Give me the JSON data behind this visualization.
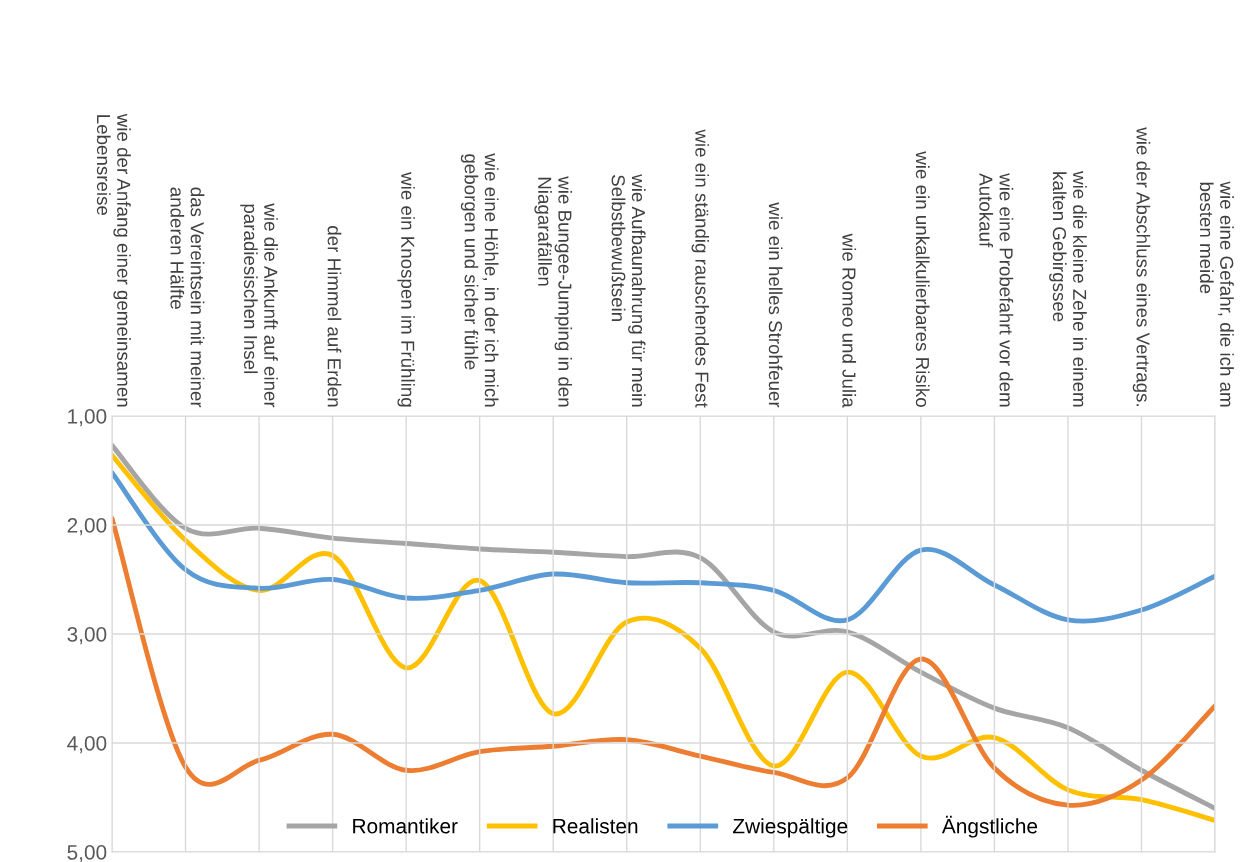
{
  "chart_data": {
    "type": "line",
    "categories": [
      "wie der Anfang einer gemeinsamen Lebensreise",
      "das Vereintsein mit meiner anderen Hälfte",
      "wie die Ankunft auf einer paradiesischen Insel",
      "der Himmel auf Erden",
      "wie ein Knospen im Frühling",
      "wie eine Höhle, in der ich mich geborgen und sicher fühle",
      "wie Bungee-Jumping in den Niagarafällen",
      "wie Aufbaunahrung für mein Selbstbewußtsein",
      "wie ein ständig rauschendes Fest",
      "wie ein helles Strohfeuer",
      "wie Romeo und Julia",
      "wie ein unkalkulierbares Risiko",
      "wie eine Probefahrt vor dem Autokauf",
      "wie die kleine Zehe in einem kalten Gebirgssee",
      "wie der Abschluss eines Vertrags.",
      "wie eine Gefahr, die ich am besten meide"
    ],
    "series": [
      {
        "name": "Romantiker",
        "color": "#a5a5a5",
        "values": [
          1.27,
          2.03,
          2.03,
          2.12,
          2.17,
          2.22,
          2.25,
          2.29,
          2.3,
          2.98,
          2.98,
          3.35,
          3.68,
          3.86,
          4.25,
          4.6
        ]
      },
      {
        "name": "Realisten",
        "color": "#ffc000",
        "values": [
          1.36,
          2.14,
          2.6,
          2.28,
          3.31,
          2.51,
          3.73,
          2.89,
          3.13,
          4.21,
          3.35,
          4.12,
          3.95,
          4.43,
          4.52,
          4.71
        ]
      },
      {
        "name": "Zwiespältige",
        "color": "#5b9bd5",
        "values": [
          1.52,
          2.41,
          2.58,
          2.5,
          2.67,
          2.6,
          2.45,
          2.53,
          2.53,
          2.6,
          2.87,
          2.23,
          2.55,
          2.87,
          2.78,
          2.47
        ]
      },
      {
        "name": "Ängstliche",
        "color": "#ed7d31",
        "values": [
          1.94,
          4.22,
          4.16,
          3.92,
          4.25,
          4.08,
          4.03,
          3.97,
          4.12,
          4.27,
          4.32,
          3.23,
          4.23,
          4.57,
          4.34,
          3.66
        ]
      }
    ],
    "ylim": [
      5,
      1
    ],
    "yticks": [
      {
        "value": 1,
        "label": "1,00"
      },
      {
        "value": 2,
        "label": "2,00"
      },
      {
        "value": 3,
        "label": "3,00"
      },
      {
        "value": 4,
        "label": "4,00"
      },
      {
        "value": 5,
        "label": "5,00"
      }
    ],
    "grid": true,
    "legend": "bottom",
    "marker": "none",
    "line_style": "solid"
  }
}
